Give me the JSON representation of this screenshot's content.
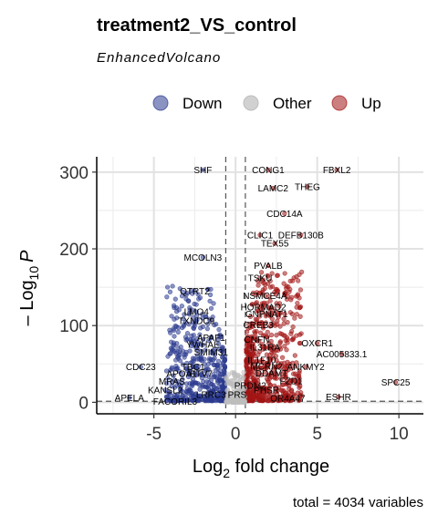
{
  "chart_data": {
    "type": "scatter",
    "title": "treatment2_VS_control",
    "subtitle": "EnhancedVolcano",
    "xlabel_main": "Log",
    "xlabel_sub": "2",
    "xlabel_rest": " fold change",
    "ylabel_prefix": "– Log",
    "ylabel_sub": "10",
    "ylabel_var": "P",
    "caption": "total = 4034 variables",
    "xlim": [
      -8.5,
      11.5
    ],
    "ylim": [
      -15,
      320
    ],
    "x_ticks": [
      {
        "value": -5,
        "label": "-5"
      },
      {
        "value": 0,
        "label": "0"
      },
      {
        "value": 5,
        "label": "5"
      },
      {
        "value": 10,
        "label": "10"
      }
    ],
    "y_ticks": [
      {
        "value": 0,
        "label": "0"
      },
      {
        "value": 100,
        "label": "100"
      },
      {
        "value": 200,
        "label": "200"
      },
      {
        "value": 300,
        "label": "300"
      }
    ],
    "fc_cutoff": 0.6,
    "p_cutoff_log10": 1.3,
    "grid": true,
    "legend_position": "top",
    "legend": [
      {
        "name": "Down",
        "color": "#2B3B8F"
      },
      {
        "name": "Other",
        "color": "#BDBDBD"
      },
      {
        "name": "Up",
        "color": "#A31515"
      }
    ],
    "labeled_points": [
      {
        "label": "SHF",
        "x": -2.0,
        "y": 303,
        "group": "Down"
      },
      {
        "label": "CONG1",
        "x": 2.0,
        "y": 303,
        "group": "Up"
      },
      {
        "label": "FBXL2",
        "x": 6.2,
        "y": 303,
        "group": "Up"
      },
      {
        "label": "LAMC2",
        "x": 2.3,
        "y": 279,
        "group": "Up"
      },
      {
        "label": "THEG",
        "x": 4.4,
        "y": 281,
        "group": "Up"
      },
      {
        "label": "CDC14A",
        "x": 3.0,
        "y": 246,
        "group": "Up"
      },
      {
        "label": "CLIC1",
        "x": 1.5,
        "y": 218,
        "group": "Up"
      },
      {
        "label": "DEFB130B",
        "x": 4.0,
        "y": 218,
        "group": "Up"
      },
      {
        "label": "TEX55",
        "x": 2.4,
        "y": 207,
        "group": "Up"
      },
      {
        "label": "MCOLN3",
        "x": -2.0,
        "y": 189,
        "group": "Down"
      },
      {
        "label": "PVALB",
        "x": 2.0,
        "y": 178,
        "group": "Up"
      },
      {
        "label": "TSKU",
        "x": 1.5,
        "y": 162,
        "group": "Up"
      },
      {
        "label": "QTRT2",
        "x": -2.5,
        "y": 145,
        "group": "Down"
      },
      {
        "label": "NSMCE4A",
        "x": 1.8,
        "y": 139,
        "group": "Up"
      },
      {
        "label": "HORMAD2",
        "x": 1.7,
        "y": 124,
        "group": "Up"
      },
      {
        "label": "LMO4",
        "x": -2.4,
        "y": 118,
        "group": "Down"
      },
      {
        "label": "GNPNAT1",
        "x": 1.9,
        "y": 115,
        "group": "Up"
      },
      {
        "label": "TXNDC9",
        "x": -2.4,
        "y": 106,
        "group": "Down"
      },
      {
        "label": "CREB3",
        "x": 1.4,
        "y": 101,
        "group": "Up"
      },
      {
        "label": "APAF1",
        "x": -1.5,
        "y": 84,
        "group": "Down"
      },
      {
        "label": "CNFN",
        "x": 1.3,
        "y": 82,
        "group": "Up"
      },
      {
        "label": "OXCR1",
        "x": 5.0,
        "y": 77,
        "group": "Up"
      },
      {
        "label": "YWHAE",
        "x": -2.0,
        "y": 75,
        "group": "Down"
      },
      {
        "label": "IL31RA",
        "x": 1.8,
        "y": 72,
        "group": "Up"
      },
      {
        "label": "SMIM31",
        "x": -1.5,
        "y": 65,
        "group": "Down"
      },
      {
        "label": "AC005833.1",
        "x": 6.5,
        "y": 63,
        "group": "Up"
      },
      {
        "label": "IL1F10",
        "x": 1.6,
        "y": 55,
        "group": "Up"
      },
      {
        "label": "CDC23",
        "x": -5.8,
        "y": 46,
        "group": "Down"
      },
      {
        "label": "TBC1",
        "x": -2.6,
        "y": 46,
        "group": "Down"
      },
      {
        "label": "MCRN2",
        "x": 1.9,
        "y": 47,
        "group": "Up"
      },
      {
        "label": "ANKMY2",
        "x": 4.3,
        "y": 46,
        "group": "Up"
      },
      {
        "label": "APOA1",
        "x": -3.3,
        "y": 37,
        "group": "Down"
      },
      {
        "label": "ETV7",
        "x": -2.1,
        "y": 37,
        "group": "Down"
      },
      {
        "label": "DDAMT",
        "x": 2.2,
        "y": 38,
        "group": "Up"
      },
      {
        "label": "MRAS",
        "x": -3.9,
        "y": 27,
        "group": "Down"
      },
      {
        "label": "FZD1",
        "x": 3.4,
        "y": 28,
        "group": "Up"
      },
      {
        "label": "SPC25",
        "x": 9.8,
        "y": 26,
        "group": "Up"
      },
      {
        "label": "PRDM2",
        "x": 0.9,
        "y": 22,
        "group": "Up"
      },
      {
        "label": "KANSL2",
        "x": -4.3,
        "y": 16,
        "group": "Down"
      },
      {
        "label": "PHSR",
        "x": 1.9,
        "y": 16,
        "group": "Up"
      },
      {
        "label": "LRRC3",
        "x": -1.5,
        "y": 10,
        "group": "Down"
      },
      {
        "label": "PRS",
        "x": 0.1,
        "y": 10,
        "group": "Other"
      },
      {
        "label": "ESHR",
        "x": 6.3,
        "y": 7,
        "group": "Up"
      },
      {
        "label": "APELA",
        "x": -6.5,
        "y": 6,
        "group": "Down"
      },
      {
        "label": "OR4A47",
        "x": 3.2,
        "y": 5,
        "group": "Up"
      },
      {
        "label": "FACORIL3",
        "x": -3.7,
        "y": 1,
        "group": "Down"
      }
    ]
  }
}
